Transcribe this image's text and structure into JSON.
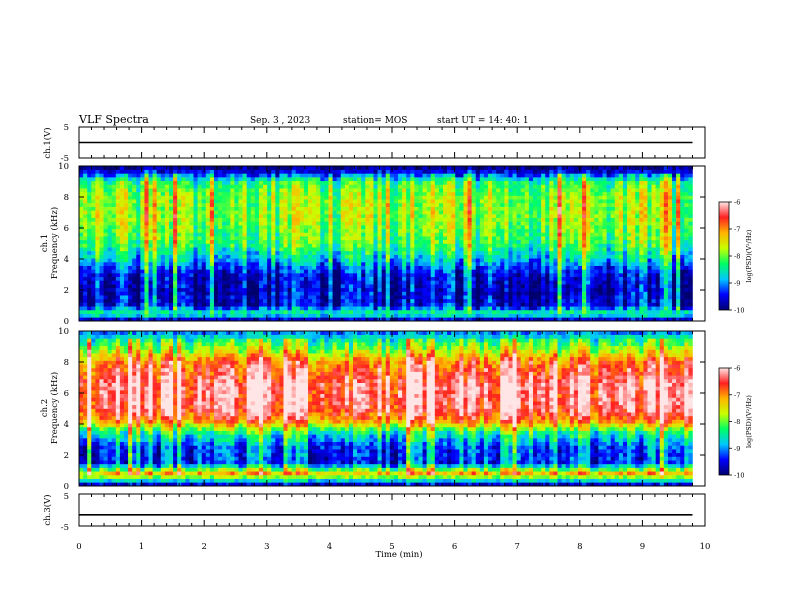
{
  "header": {
    "title": "VLF Spectra",
    "date": "Sep. 3 , 2023",
    "station": "station= MOS",
    "start": "start UT =  14: 40: 1"
  },
  "colors": {
    "colormap": [
      "#00006e",
      "#0000ff",
      "#00c8ff",
      "#00ff64",
      "#c8ff00",
      "#ffb400",
      "#ff2020",
      "#ffe6e6"
    ],
    "line": "#000000",
    "background": "#ffffff"
  },
  "chart_data": [
    {
      "type": "line",
      "panel": "ch1-waveform",
      "ylabel": "ch.1(V)",
      "ylim": [
        -5,
        5
      ],
      "yticks": [
        "5",
        "-5"
      ],
      "xlim": [
        0,
        10
      ],
      "series": [
        {
          "x": [
            0,
            9.8
          ],
          "y": [
            0,
            0
          ]
        }
      ]
    },
    {
      "type": "heatmap",
      "panel": "ch1-spectrogram",
      "ylabel": "ch.1\nFrequency (kHz)",
      "ylim": [
        0,
        10
      ],
      "yticks": [
        "0",
        "2",
        "4",
        "6",
        "8",
        "10"
      ],
      "xlim": [
        0,
        10
      ],
      "data_x_extent": [
        0,
        9.8
      ],
      "colorbar": {
        "label": "log(PSD)(V²/Hz)",
        "range": [
          -10,
          -6
        ],
        "ticks": [
          "-6",
          "-7",
          "-8",
          "-9",
          "-10"
        ]
      },
      "profile": [
        {
          "f": 0.0,
          "v": -10.0
        },
        {
          "f": 0.5,
          "v": -8.3
        },
        {
          "f": 1.0,
          "v": -9.6
        },
        {
          "f": 2.0,
          "v": -9.7
        },
        {
          "f": 3.0,
          "v": -9.6
        },
        {
          "f": 4.0,
          "v": -8.8
        },
        {
          "f": 5.0,
          "v": -8.2
        },
        {
          "f": 6.5,
          "v": -7.9
        },
        {
          "f": 8.0,
          "v": -7.9
        },
        {
          "f": 9.0,
          "v": -8.3
        },
        {
          "f": 9.6,
          "v": -9.5
        },
        {
          "f": 10.0,
          "v": -10.0
        }
      ]
    },
    {
      "type": "heatmap",
      "panel": "ch2-spectrogram",
      "ylabel": "ch.2\nFrequency (kHz)",
      "ylim": [
        0,
        10
      ],
      "yticks": [
        "0",
        "2",
        "4",
        "6",
        "8",
        "10"
      ],
      "xlim": [
        0,
        10
      ],
      "data_x_extent": [
        0,
        9.8
      ],
      "colorbar": {
        "label": "log(PSD)(V²/Hz)",
        "range": [
          -10,
          -6
        ],
        "ticks": [
          "-6",
          "-7",
          "-8",
          "-9",
          "-10"
        ]
      },
      "profile": [
        {
          "f": 0.0,
          "v": -10.0
        },
        {
          "f": 0.8,
          "v": -7.2
        },
        {
          "f": 1.5,
          "v": -9.4
        },
        {
          "f": 2.5,
          "v": -9.3
        },
        {
          "f": 3.5,
          "v": -8.4
        },
        {
          "f": 4.2,
          "v": -7.0
        },
        {
          "f": 5.0,
          "v": -6.4
        },
        {
          "f": 6.5,
          "v": -6.3
        },
        {
          "f": 8.0,
          "v": -6.9
        },
        {
          "f": 8.8,
          "v": -7.8
        },
        {
          "f": 9.5,
          "v": -8.5
        },
        {
          "f": 10.0,
          "v": -9.2
        }
      ]
    },
    {
      "type": "line",
      "panel": "ch3-waveform",
      "ylabel": "ch.3(V)",
      "ylim": [
        -5,
        5
      ],
      "yticks": [
        "5",
        "-5"
      ],
      "xlim": [
        0,
        10
      ],
      "series": [
        {
          "x": [
            0,
            9.8
          ],
          "y": [
            -1.5,
            -1.5
          ]
        }
      ]
    }
  ],
  "xaxis": {
    "label": "Time (min)",
    "ticks": [
      "0",
      "1",
      "2",
      "3",
      "4",
      "5",
      "6",
      "7",
      "8",
      "9",
      "10"
    ]
  }
}
